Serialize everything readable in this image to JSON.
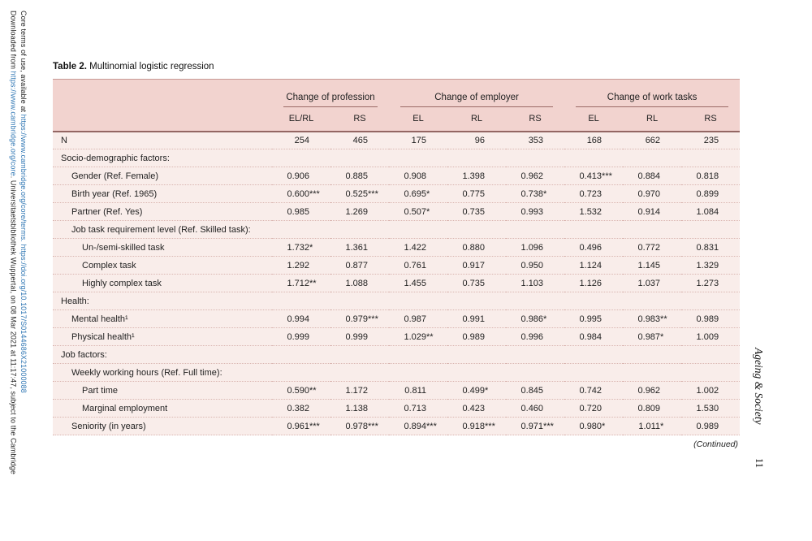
{
  "colors": {
    "header_bg": "#f2d3cf",
    "body_bg": "#f9edea",
    "heavy_rule": "#936663",
    "light_rule": "#c79894",
    "dot_rule": "#dab6b1",
    "underline": "#9a6a66",
    "link_blue": "#3077b4"
  },
  "page": {
    "journal_name": "Ageing & Society",
    "page_number": "11",
    "continued_note": "(Continued)",
    "left_margin_line1": {
      "prefix": "Downloaded from ",
      "link": "https://www.cambridge.org/core",
      "suffix": ". Universitaetsbibliothek Wuppertal, on 08 Mar 2021 at 11:17:47, subject to the Cambridge"
    },
    "left_margin_line2": {
      "prefix": "Core terms of use, available at ",
      "link": "https://www.cambridge.org/core/terms. https://doi.org/10.1017/S0144686X21000088"
    }
  },
  "table": {
    "title_label": "Table 2.",
    "title_text": "Multinomial logistic regression",
    "col_groups": [
      {
        "label": "Change of profession",
        "cols": [
          "EL/RL",
          "RS"
        ]
      },
      {
        "label": "Change of employer",
        "cols": [
          "EL",
          "RL",
          "RS"
        ]
      },
      {
        "label": "Change of work tasks",
        "cols": [
          "EL",
          "RL",
          "RS"
        ]
      }
    ],
    "rows": [
      {
        "label": "N",
        "indent": 0,
        "values": [
          "254",
          "465",
          "175",
          "96",
          "353",
          "168",
          "662",
          "235"
        ]
      },
      {
        "label": "Socio-demographic factors:",
        "indent": 0,
        "values": null
      },
      {
        "label": "Gender (Ref. Female)",
        "indent": 1,
        "values": [
          "0.906",
          "0.885",
          "0.908",
          "1.398",
          "0.962",
          "0.413***",
          "0.884",
          "0.818"
        ]
      },
      {
        "label": "Birth year (Ref. 1965)",
        "indent": 1,
        "values": [
          "0.600***",
          "0.525***",
          "0.695*",
          "0.775",
          "0.738*",
          "0.723",
          "0.970",
          "0.899"
        ]
      },
      {
        "label": "Partner (Ref. Yes)",
        "indent": 1,
        "values": [
          "0.985",
          "1.269",
          "0.507*",
          "0.735",
          "0.993",
          "1.532",
          "0.914",
          "1.084"
        ]
      },
      {
        "label": "Job task requirement level (Ref. Skilled task):",
        "indent": 1,
        "values": null
      },
      {
        "label": "Un-/semi-skilled task",
        "indent": 2,
        "values": [
          "1.732*",
          "1.361",
          "1.422",
          "0.880",
          "1.096",
          "0.496",
          "0.772",
          "0.831"
        ]
      },
      {
        "label": "Complex task",
        "indent": 2,
        "values": [
          "1.292",
          "0.877",
          "0.761",
          "0.917",
          "0.950",
          "1.124",
          "1.145",
          "1.329"
        ]
      },
      {
        "label": "Highly complex task",
        "indent": 2,
        "values": [
          "1.712**",
          "1.088",
          "1.455",
          "0.735",
          "1.103",
          "1.126",
          "1.037",
          "1.273"
        ]
      },
      {
        "label": "Health:",
        "indent": 0,
        "values": null
      },
      {
        "label": "Mental health¹",
        "indent": 1,
        "values": [
          "0.994",
          "0.979***",
          "0.987",
          "0.991",
          "0.986*",
          "0.995",
          "0.983**",
          "0.989"
        ]
      },
      {
        "label": "Physical health¹",
        "indent": 1,
        "values": [
          "0.999",
          "0.999",
          "1.029**",
          "0.989",
          "0.996",
          "0.984",
          "0.987*",
          "1.009"
        ]
      },
      {
        "label": "Job factors:",
        "indent": 0,
        "values": null
      },
      {
        "label": "Weekly working hours (Ref. Full time):",
        "indent": 1,
        "values": null
      },
      {
        "label": "Part time",
        "indent": 2,
        "values": [
          "0.590**",
          "1.172",
          "0.811",
          "0.499*",
          "0.845",
          "0.742",
          "0.962",
          "1.002"
        ]
      },
      {
        "label": "Marginal employment",
        "indent": 2,
        "values": [
          "0.382",
          "1.138",
          "0.713",
          "0.423",
          "0.460",
          "0.720",
          "0.809",
          "1.530"
        ]
      },
      {
        "label": "Seniority (in years)",
        "indent": 1,
        "values": [
          "0.961***",
          "0.978***",
          "0.894***",
          "0.918***",
          "0.971***",
          "0.980*",
          "1.011*",
          "0.989"
        ]
      }
    ]
  }
}
